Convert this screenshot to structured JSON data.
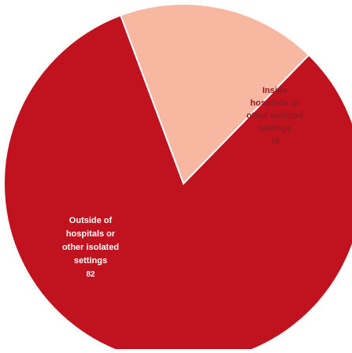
{
  "chart_data": {
    "type": "pie",
    "title": "",
    "slices": [
      {
        "label_lines": [
          "Inside",
          "hospitals or",
          "other isolated",
          "settings"
        ],
        "value": 18,
        "value_label": "18",
        "color": "#F7B7A0",
        "text_color": "#8E1B22"
      },
      {
        "label_lines": [
          "Outside of",
          "hospitals or",
          "other isolated",
          "settings"
        ],
        "value": 82,
        "value_label": "82",
        "color": "#C0121F",
        "text_color": "#FFFFFF"
      }
    ],
    "legend": "none"
  }
}
